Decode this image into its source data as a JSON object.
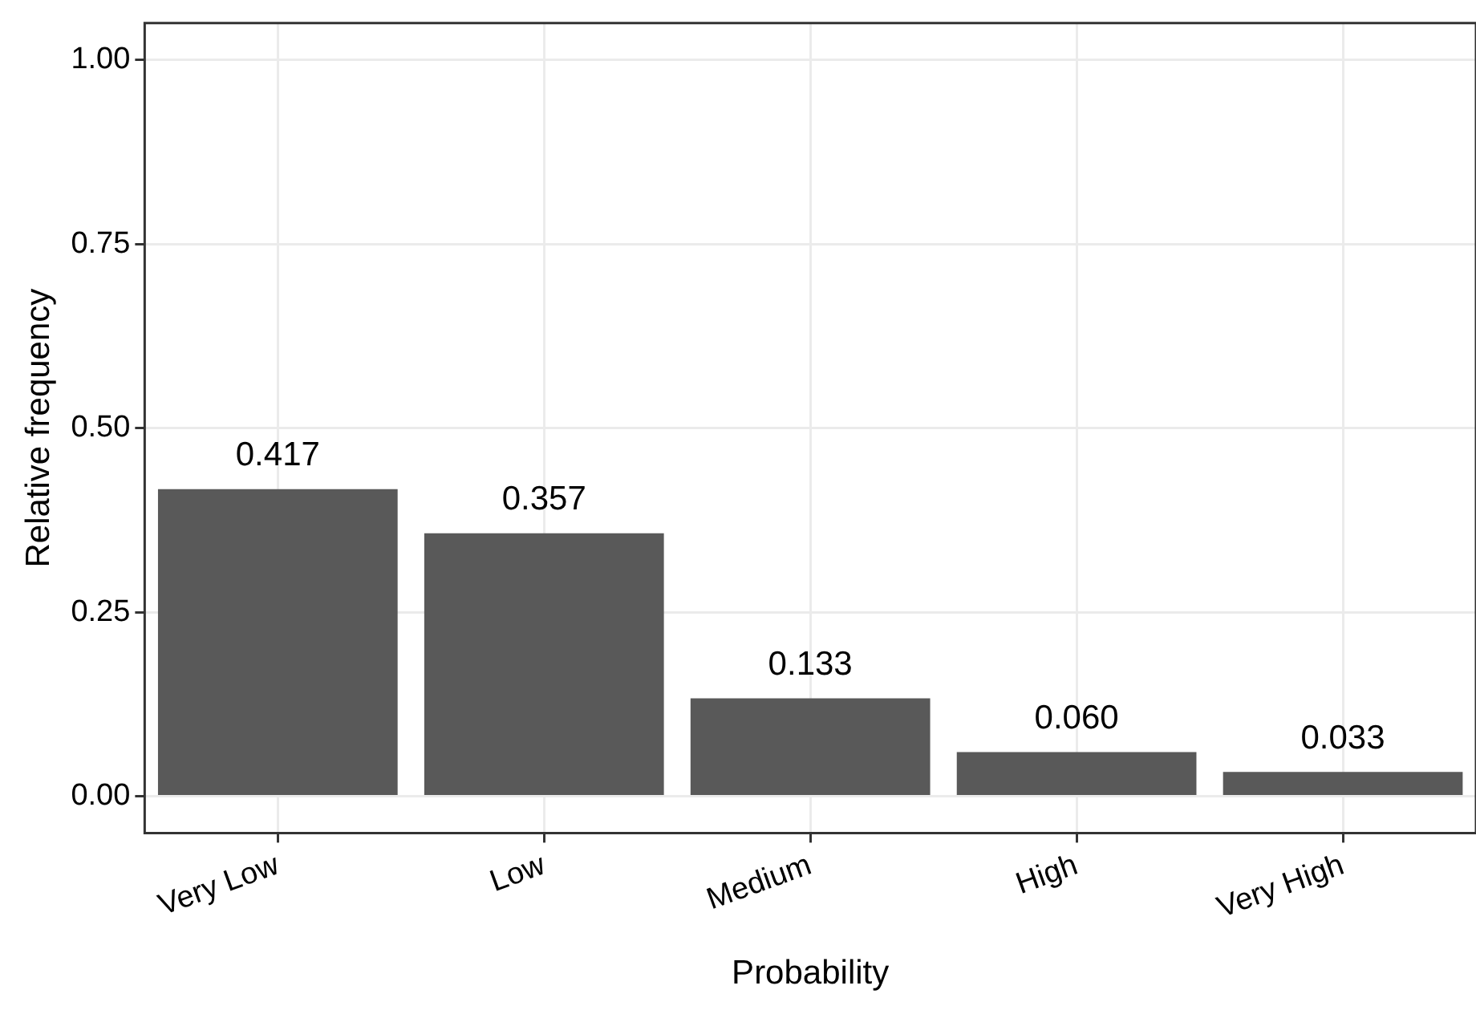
{
  "chart_data": {
    "type": "bar",
    "xlabel": "Probability",
    "ylabel": "Relative frequency",
    "categories": [
      "Very Low",
      "Low",
      "Medium",
      "High",
      "Very High"
    ],
    "values": [
      0.417,
      0.357,
      0.133,
      0.06,
      0.033
    ],
    "value_labels": [
      "0.417",
      "0.357",
      "0.133",
      "0.060",
      "0.033"
    ],
    "color": "#595959",
    "ylim": [
      -0.05,
      1.05
    ],
    "yticks": [
      {
        "value": 0,
        "label": "0.00"
      },
      {
        "value": 0.25,
        "label": "0.25"
      },
      {
        "value": 0.5,
        "label": "0.50"
      },
      {
        "value": 0.75,
        "label": "0.75"
      },
      {
        "value": 1,
        "label": "1.00"
      }
    ],
    "grid": true,
    "legend": false
  }
}
